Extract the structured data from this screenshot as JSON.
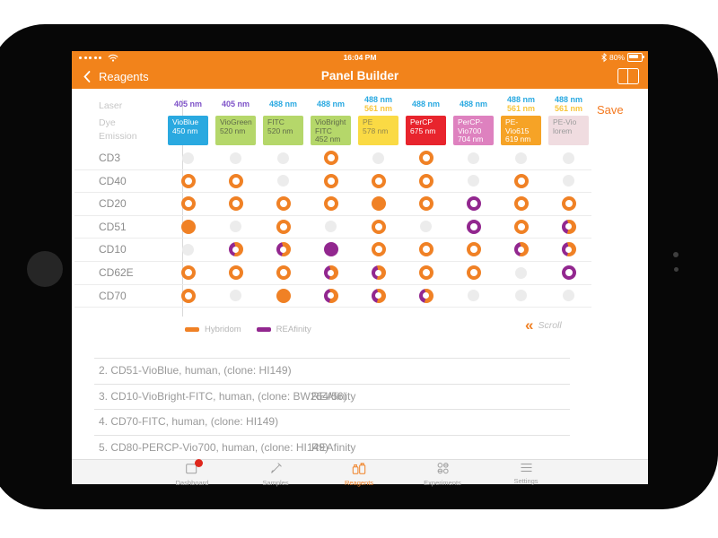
{
  "status_bar": {
    "signal_dots": 5,
    "time": "16:04 PM",
    "battery_percent": "80%"
  },
  "nav_bar": {
    "back_label": "Reagents",
    "title": "Panel Builder",
    "save_label": "Save"
  },
  "colors": {
    "header_orange": "#F2831B",
    "accent_orange": "#F4791F",
    "hybridoma": "#F08125",
    "reafinity": "#92278F",
    "empty_dot": "#ECECEC",
    "badge_red": "#DF271C"
  },
  "matrix": {
    "axis_labels": [
      "Laser",
      "Dye",
      "Emission"
    ],
    "scroll_label": "Scroll",
    "legend": [
      {
        "label": "Hybridom",
        "color": "#F08125"
      },
      {
        "label": "REAfinity",
        "color": "#92278F"
      }
    ],
    "columns": [
      {
        "lasers": [
          {
            "text": "405 nm",
            "color": "#7E52C8"
          }
        ],
        "dye": "VioBlue",
        "emission": "450 nm",
        "bg": "#2AA9E0",
        "fg": "#FFFFFF"
      },
      {
        "lasers": [
          {
            "text": "405 nm",
            "color": "#7E52C8"
          }
        ],
        "dye": "VioGreen",
        "emission": "520 nm",
        "bg": "#B5D76A",
        "fg": "#5F6B49"
      },
      {
        "lasers": [
          {
            "text": "488 nm",
            "color": "#29A9E1"
          }
        ],
        "dye": "FITC",
        "emission": "520 nm",
        "bg": "#B5D76A",
        "fg": "#5F6B49"
      },
      {
        "lasers": [
          {
            "text": "488 nm",
            "color": "#29A9E1"
          }
        ],
        "dye": "VioBright FITC",
        "emission": "452 nm",
        "bg": "#B5D76A",
        "fg": "#5F6B49"
      },
      {
        "lasers": [
          {
            "text": "488 nm",
            "color": "#29A9E1"
          },
          {
            "text": "561 nm",
            "color": "#F8C63C"
          }
        ],
        "dye": "PE",
        "emission": "578 nm",
        "bg": "#FADA44",
        "fg": "#93884D"
      },
      {
        "lasers": [
          {
            "text": "488 nm",
            "color": "#29A9E1"
          }
        ],
        "dye": "PerCP",
        "emission": "675 nm",
        "bg": "#E8242D",
        "fg": "#FFFFFF"
      },
      {
        "lasers": [
          {
            "text": "488 nm",
            "color": "#29A9E1"
          }
        ],
        "dye": "PerCP-Vio700",
        "emission": "704 nm",
        "bg": "#DE81BF",
        "fg": "#FFFFFF"
      },
      {
        "lasers": [
          {
            "text": "488 nm",
            "color": "#29A9E1"
          },
          {
            "text": "561 nm",
            "color": "#F8C63C"
          }
        ],
        "dye": "PE-Vio615",
        "emission": "619 nm",
        "bg": "#F6A326",
        "fg": "#FFFFFF"
      },
      {
        "lasers": [
          {
            "text": "488 nm",
            "color": "#29A9E1"
          },
          {
            "text": "561 nm",
            "color": "#F8C63C"
          }
        ],
        "dye": "PE-Vio",
        "emission": "lorem",
        "bg": "#F0DCE0",
        "fg": "#9C9C9C"
      }
    ],
    "rows": [
      {
        "label": "CD3",
        "cells": [
          "none",
          "none",
          "none",
          "hybridoma",
          "none",
          "hybridoma",
          "none",
          "none",
          "none"
        ]
      },
      {
        "label": "CD40",
        "cells": [
          "hybridoma",
          "hybridoma",
          "none",
          "hybridoma",
          "hybridoma",
          "hybridoma",
          "none",
          "hybridoma",
          "none"
        ]
      },
      {
        "label": "CD20",
        "cells": [
          "hybridoma",
          "hybridoma",
          "hybridoma",
          "hybridoma",
          "hybridoma-filled",
          "hybridoma",
          "reafinity",
          "hybridoma",
          "hybridoma"
        ]
      },
      {
        "label": "CD51",
        "cells": [
          "hybridoma-filled",
          "none",
          "hybridoma",
          "none",
          "hybridoma",
          "none",
          "reafinity",
          "hybridoma",
          "both"
        ]
      },
      {
        "label": "CD10",
        "cells": [
          "none",
          "both",
          "both",
          "reafinity-filled",
          "hybridoma",
          "hybridoma",
          "hybridoma",
          "both",
          "both"
        ]
      },
      {
        "label": "CD62E",
        "cells": [
          "hybridoma",
          "hybridoma",
          "hybridoma",
          "both",
          "both",
          "hybridoma",
          "hybridoma",
          "none",
          "reafinity"
        ]
      },
      {
        "label": "CD70",
        "cells": [
          "hybridoma",
          "none",
          "hybridoma-filled",
          "both",
          "both",
          "both",
          "none",
          "none",
          "none"
        ]
      }
    ]
  },
  "reagent_list": [
    {
      "text": "2. CD51-VioBlue, human, (clone: HI149)",
      "badge": ""
    },
    {
      "text": "3. CD10-VioBright-FITC, human, (clone: BW264/56)",
      "badge": "REAfinity"
    },
    {
      "text": "4. CD70-FITC, human, (clone: HI149)",
      "badge": ""
    },
    {
      "text": "5. CD80-PERCP-Vio700, human, (clone: HI149)",
      "badge": "REAfinity"
    }
  ],
  "tab_bar": [
    {
      "label": "Dashboard",
      "icon": "dashboard-icon",
      "active": false,
      "badge": true
    },
    {
      "label": "Samples",
      "icon": "samples-icon",
      "active": false,
      "badge": false
    },
    {
      "label": "Reagents",
      "icon": "reagents-icon",
      "active": true,
      "badge": false
    },
    {
      "label": "Experiments",
      "icon": "experiments-icon",
      "active": false,
      "badge": false
    },
    {
      "label": "Settings",
      "icon": "settings-icon",
      "active": false,
      "badge": false
    }
  ]
}
